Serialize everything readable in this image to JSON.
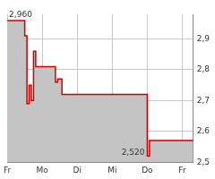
{
  "chart_data": {
    "type": "line",
    "categories": [
      "Fr",
      null,
      null,
      null,
      null,
      null,
      null,
      null,
      null,
      null,
      null,
      null,
      null,
      null,
      null,
      null,
      "Mo",
      null,
      null,
      null,
      null,
      null,
      null,
      null,
      null,
      null,
      null,
      null,
      null,
      null,
      null,
      null,
      "Di",
      null,
      null,
      null,
      null,
      null,
      null,
      null,
      null,
      null,
      null,
      null,
      null,
      null,
      null,
      null,
      "Mi",
      null,
      null,
      null,
      null,
      null,
      null,
      null,
      null,
      null,
      null,
      null,
      null,
      null,
      null,
      null,
      "Do",
      null,
      null,
      null,
      null,
      null,
      null,
      null,
      null,
      null,
      null,
      null,
      null,
      null,
      null,
      null,
      "Fr",
      null,
      null,
      null,
      null,
      null
    ],
    "values": [
      2.96,
      2.96,
      2.96,
      2.96,
      2.96,
      2.96,
      2.96,
      2.96,
      2.91,
      2.69,
      2.75,
      2.7,
      2.86,
      2.81,
      2.81,
      2.81,
      2.81,
      2.81,
      2.81,
      2.81,
      2.81,
      2.81,
      2.76,
      2.77,
      2.77,
      2.72,
      2.72,
      2.72,
      2.72,
      2.72,
      2.72,
      2.72,
      2.72,
      2.72,
      2.72,
      2.72,
      2.72,
      2.72,
      2.72,
      2.72,
      2.72,
      2.72,
      2.72,
      2.72,
      2.72,
      2.72,
      2.72,
      2.72,
      2.72,
      2.72,
      2.72,
      2.72,
      2.72,
      2.72,
      2.72,
      2.72,
      2.72,
      2.72,
      2.72,
      2.72,
      2.72,
      2.72,
      2.72,
      2.72,
      2.52,
      2.57,
      2.57,
      2.57,
      2.57,
      2.57,
      2.57,
      2.57,
      2.57,
      2.57,
      2.57,
      2.57,
      2.57,
      2.57,
      2.57,
      2.57,
      2.57,
      2.57,
      2.57,
      2.57,
      2.57,
      2.57
    ],
    "color": "#cc0000",
    "ylim": [
      2.5,
      2.98
    ],
    "yticks": [
      {
        "value": 2.5,
        "label": "2,5"
      },
      {
        "value": 2.6,
        "label": "2,6"
      },
      {
        "value": 2.7,
        "label": "2,7"
      },
      {
        "value": 2.8,
        "label": "2,8"
      },
      {
        "value": 2.9,
        "label": "2,9"
      }
    ],
    "grid": true,
    "annotations": [
      {
        "label": "2,960",
        "value": 2.96
      },
      {
        "label": "2,520",
        "value": 2.52
      }
    ]
  }
}
